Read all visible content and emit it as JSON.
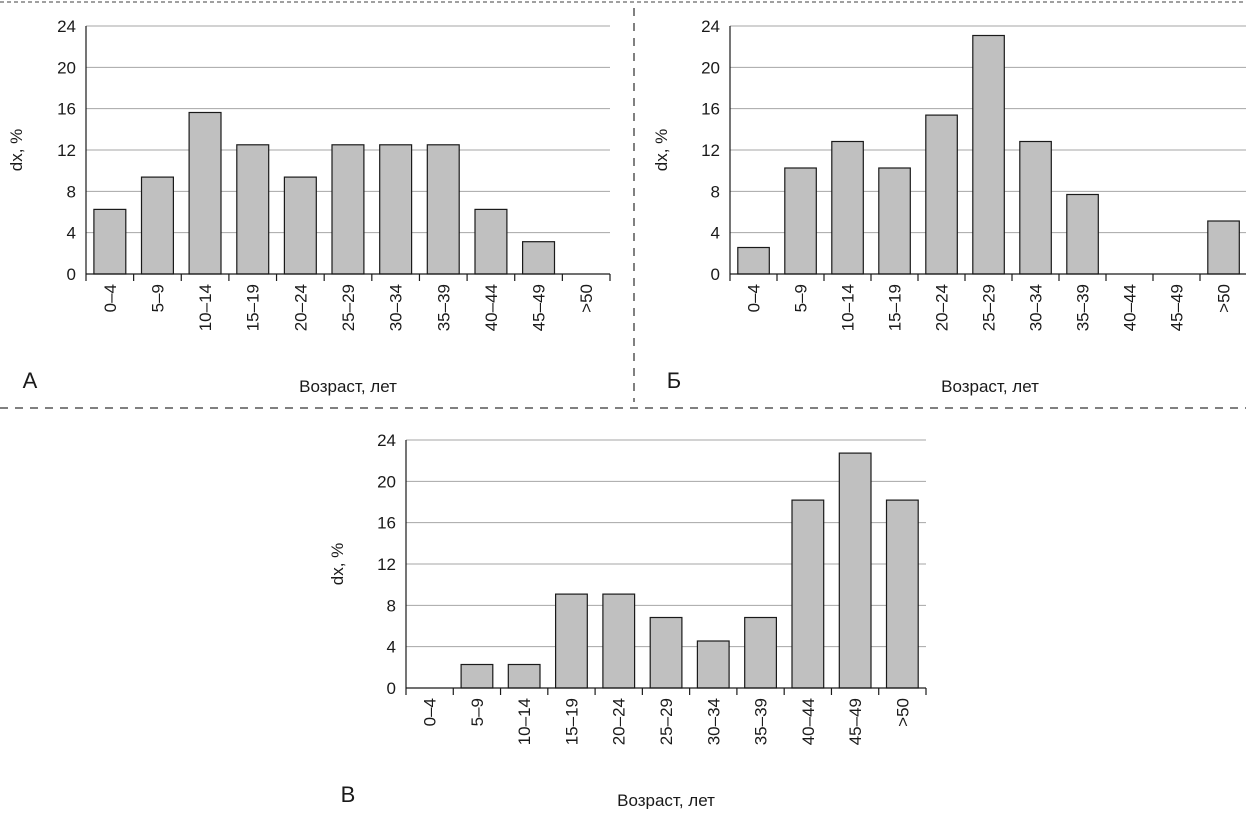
{
  "chart_data": [
    {
      "panel": "А",
      "type": "bar",
      "categories": [
        "0–4",
        "5–9",
        "10–14",
        "15–19",
        "20–24",
        "25–29",
        "30–34",
        "35–39",
        "40–44",
        "45–49",
        ">50"
      ],
      "values": [
        6.25,
        9.375,
        15.625,
        12.5,
        9.375,
        12.5,
        12.5,
        12.5,
        6.25,
        3.125,
        0
      ],
      "xlabel": "Возраст, лет",
      "ylabel": "dx, %",
      "ylim": [
        0,
        24
      ],
      "yticks": [
        0,
        4,
        8,
        12,
        16,
        20,
        24
      ],
      "grid": true,
      "bar_color": "#c0c0c0"
    },
    {
      "panel": "Б",
      "type": "bar",
      "categories": [
        "0–4",
        "5–9",
        "10–14",
        "15–19",
        "20–24",
        "25–29",
        "30–34",
        "35–39",
        "40–44",
        "45–49",
        ">50"
      ],
      "values": [
        2.56,
        10.26,
        12.82,
        10.26,
        15.38,
        23.08,
        12.82,
        7.69,
        0,
        0,
        5.13
      ],
      "xlabel": "Возраст, лет",
      "ylabel": "dx, %",
      "ylim": [
        0,
        24
      ],
      "yticks": [
        0,
        4,
        8,
        12,
        16,
        20,
        24
      ],
      "grid": true,
      "bar_color": "#c0c0c0"
    },
    {
      "panel": "В",
      "type": "bar",
      "categories": [
        "0–4",
        "5–9",
        "10–14",
        "15–19",
        "20–24",
        "25–29",
        "30–34",
        "35–39",
        "40–44",
        "45–49",
        ">50"
      ],
      "values": [
        0,
        2.27,
        2.27,
        9.09,
        9.09,
        6.82,
        4.55,
        6.82,
        18.18,
        22.73,
        18.18
      ],
      "xlabel": "Возраст, лет",
      "ylabel": "dx, %",
      "ylim": [
        0,
        24
      ],
      "yticks": [
        0,
        4,
        8,
        12,
        16,
        20,
        24
      ],
      "grid": true,
      "bar_color": "#c0c0c0"
    }
  ]
}
